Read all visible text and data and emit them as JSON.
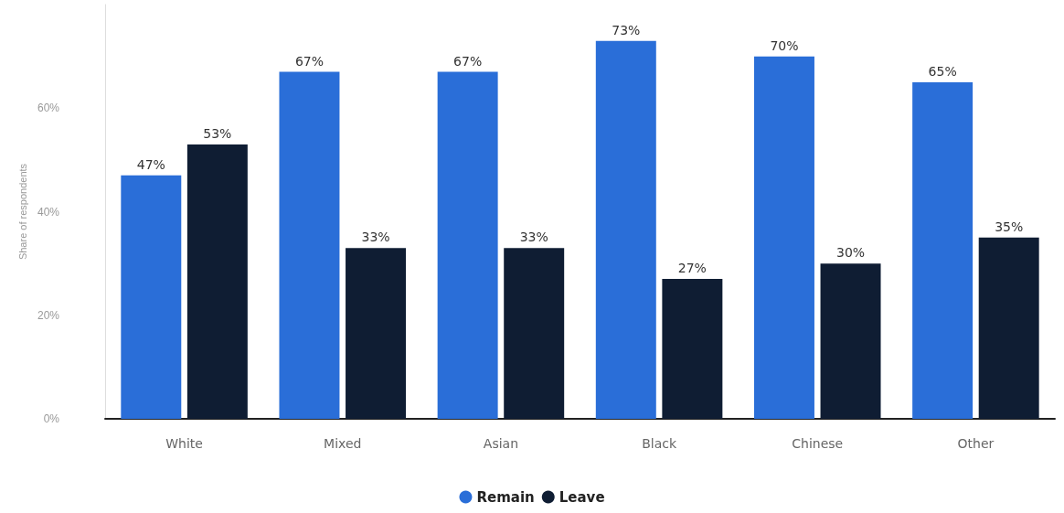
{
  "chart_data": {
    "type": "bar",
    "ylabel": "Share of respondents",
    "categories": [
      "White",
      "Mixed",
      "Asian",
      "Black",
      "Chinese",
      "Other"
    ],
    "series": [
      {
        "name": "Remain",
        "color": "#2a6ed8",
        "values": [
          47,
          67,
          67,
          73,
          70,
          65
        ],
        "value_labels": [
          "47%",
          "67%",
          "67%",
          "73%",
          "70%",
          "65%"
        ]
      },
      {
        "name": "Leave",
        "color": "#0f1d33",
        "values": [
          53,
          33,
          33,
          27,
          30,
          35
        ],
        "value_labels": [
          "53%",
          "33%",
          "33%",
          "27%",
          "30%",
          "35%"
        ]
      }
    ],
    "ylim": [
      0,
      80
    ],
    "yticks": [
      {
        "value": 0,
        "label": "0%"
      },
      {
        "value": 20,
        "label": "20%"
      },
      {
        "value": 40,
        "label": "40%"
      },
      {
        "value": 60,
        "label": "60%"
      }
    ],
    "legend": "bottom",
    "grid": false
  }
}
